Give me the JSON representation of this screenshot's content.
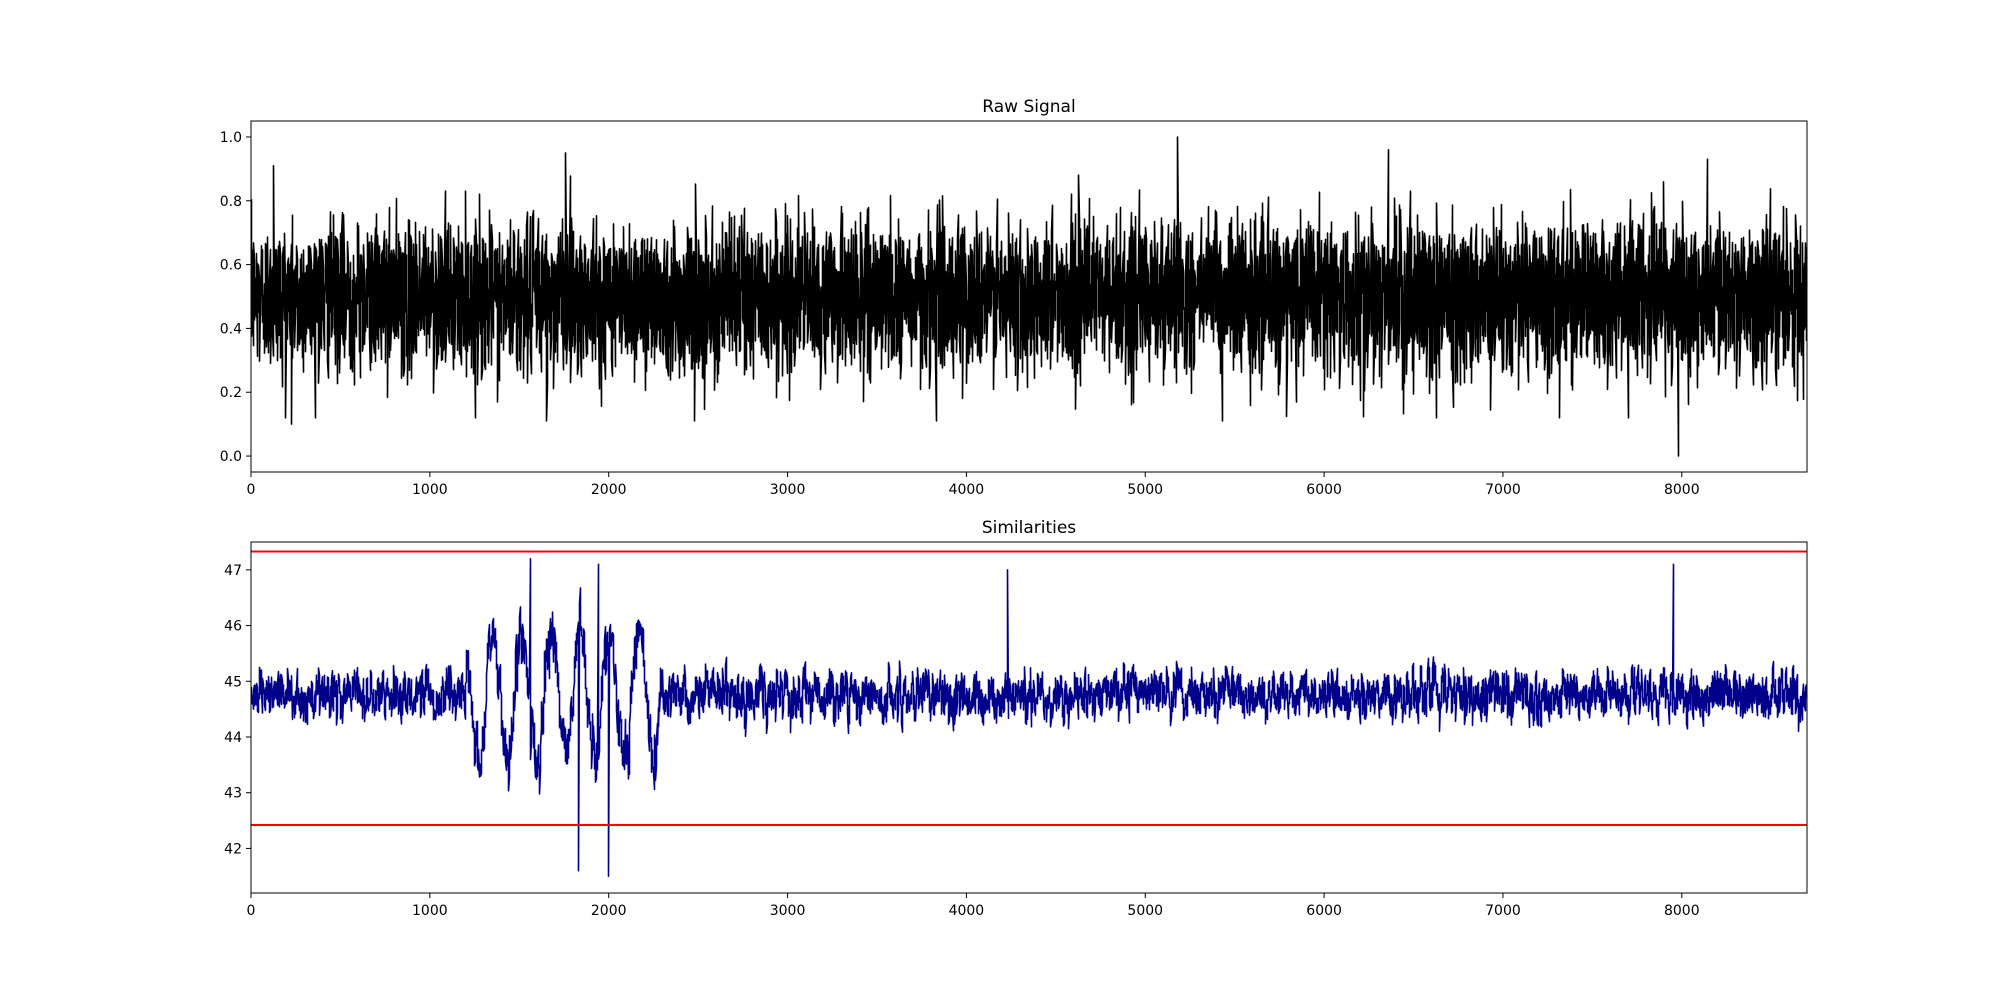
{
  "chart_data": [
    {
      "type": "line",
      "title": "Raw Signal",
      "xlabel": "",
      "ylabel": "",
      "xlim": [
        0,
        8700
      ],
      "ylim": [
        -0.05,
        1.05
      ],
      "xticks": [
        0,
        1000,
        2000,
        3000,
        4000,
        5000,
        6000,
        7000,
        8000
      ],
      "xtick_labels": [
        "0",
        "1000",
        "2000",
        "3000",
        "4000",
        "5000",
        "6000",
        "7000",
        "8000"
      ],
      "yticks": [
        0.0,
        0.2,
        0.4,
        0.6,
        0.8,
        1.0
      ],
      "ytick_labels": [
        "0.0",
        "0.2",
        "0.4",
        "0.6",
        "0.8",
        "1.0"
      ],
      "grid": false,
      "series": [
        {
          "color": "#000000",
          "n_points": 8700,
          "mean": 0.5,
          "typical_range": [
            0.3,
            0.7
          ],
          "min": 0.0,
          "max": 1.0,
          "notable_points": [
            {
              "x": 125,
              "y": 0.91
            },
            {
              "x": 225,
              "y": 0.1
            },
            {
              "x": 1760,
              "y": 0.95
            },
            {
              "x": 1650,
              "y": 0.11
            },
            {
              "x": 2480,
              "y": 0.11
            },
            {
              "x": 3830,
              "y": 0.11
            },
            {
              "x": 5180,
              "y": 1.0
            },
            {
              "x": 5430,
              "y": 0.11
            },
            {
              "x": 6360,
              "y": 0.96
            },
            {
              "x": 7700,
              "y": 0.12
            },
            {
              "x": 7980,
              "y": 0.0
            },
            {
              "x": 8140,
              "y": 0.93
            }
          ]
        }
      ]
    },
    {
      "type": "line",
      "title": "Similarities",
      "xlabel": "",
      "ylabel": "",
      "xlim": [
        0,
        8700
      ],
      "ylim": [
        41.2,
        47.5
      ],
      "xticks": [
        0,
        1000,
        2000,
        3000,
        4000,
        5000,
        6000,
        7000,
        8000
      ],
      "xtick_labels": [
        "0",
        "1000",
        "2000",
        "3000",
        "4000",
        "5000",
        "6000",
        "7000",
        "8000"
      ],
      "yticks": [
        42,
        43,
        44,
        45,
        46,
        47
      ],
      "ytick_labels": [
        "42",
        "43",
        "44",
        "45",
        "46",
        "47"
      ],
      "grid": false,
      "series": [
        {
          "color": "#00008b",
          "n_points": 8700,
          "mean": 44.75,
          "typical_range": [
            43.5,
            46.0
          ],
          "min": 41.5,
          "max": 47.2,
          "high_oscillation_region": [
            1200,
            2300
          ],
          "notable_points": [
            {
              "x": 1560,
              "y": 47.2
            },
            {
              "x": 1940,
              "y": 47.1
            },
            {
              "x": 1830,
              "y": 41.6
            },
            {
              "x": 2000,
              "y": 41.5
            },
            {
              "x": 7950,
              "y": 47.1
            },
            {
              "x": 4230,
              "y": 47.0
            }
          ]
        }
      ],
      "hlines": [
        {
          "y": 47.33,
          "color": "#ff0000"
        },
        {
          "y": 42.42,
          "color": "#ff0000"
        }
      ]
    }
  ]
}
